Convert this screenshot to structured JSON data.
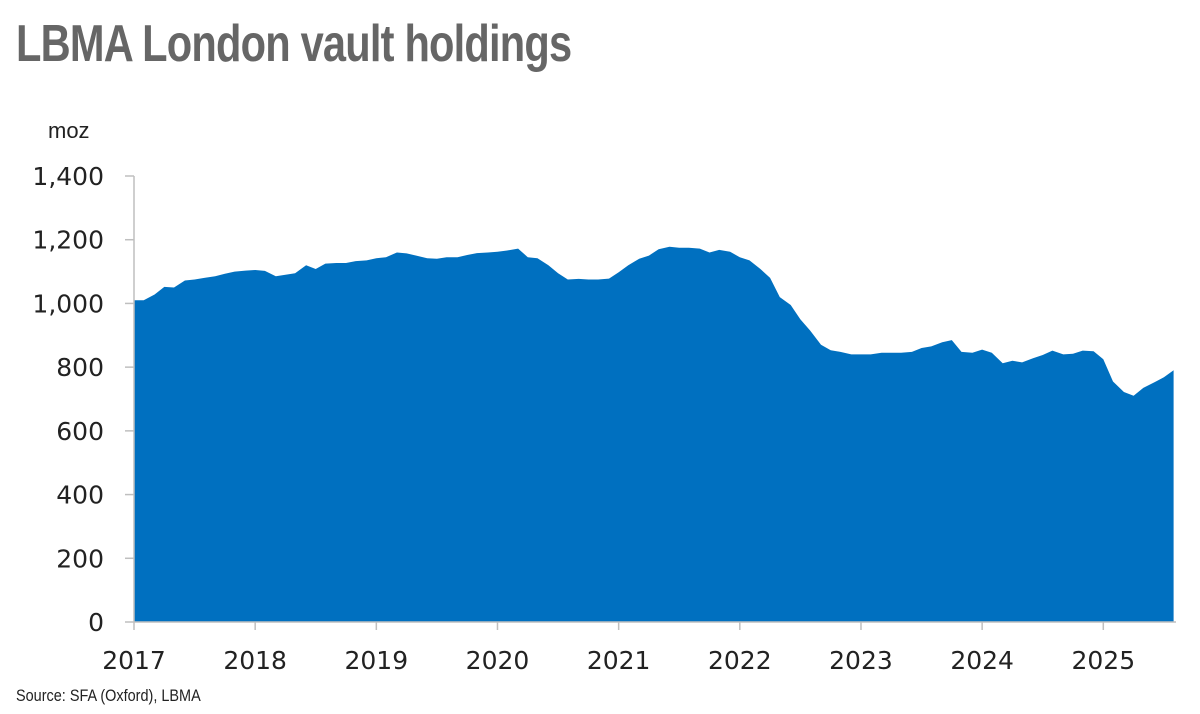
{
  "header": {
    "title": "LBMA London vault holdings"
  },
  "footer": {
    "source": "Source: SFA (Oxford), LBMA"
  },
  "chart_data": {
    "type": "area",
    "title": "LBMA London vault holdings",
    "ylabel": "moz",
    "xlabel": "",
    "ylim": [
      0,
      1400
    ],
    "xlim": [
      2017.0,
      2025.6
    ],
    "yticks": [
      0,
      200,
      400,
      600,
      800,
      1000,
      1200,
      1400
    ],
    "yticklabels": [
      "0",
      "200",
      "400",
      "600",
      "800",
      "1,000",
      "1,200",
      "1,400"
    ],
    "xticks": [
      2017,
      2018,
      2019,
      2020,
      2021,
      2022,
      2023,
      2024,
      2025
    ],
    "xticklabels": [
      "2017",
      "2018",
      "2019",
      "2020",
      "2021",
      "2022",
      "2023",
      "2024",
      "2025"
    ],
    "grid": false,
    "colors": {
      "area": "#0070c0",
      "axis": "#bfbfbf"
    },
    "series": [
      {
        "x": [
          2017.0,
          2017.08,
          2017.17,
          2017.25,
          2017.33,
          2017.42,
          2017.5,
          2017.58,
          2017.67,
          2017.75,
          2017.83,
          2017.92,
          2018.0,
          2018.08,
          2018.17,
          2018.25,
          2018.33,
          2018.42,
          2018.5,
          2018.58,
          2018.67,
          2018.75,
          2018.83,
          2018.92,
          2019.0,
          2019.08,
          2019.17,
          2019.25,
          2019.33,
          2019.42,
          2019.5,
          2019.58,
          2019.67,
          2019.75,
          2019.83,
          2019.92,
          2020.0,
          2020.08,
          2020.17,
          2020.25,
          2020.33,
          2020.42,
          2020.5,
          2020.58,
          2020.67,
          2020.75,
          2020.83,
          2020.92,
          2021.0,
          2021.08,
          2021.17,
          2021.25,
          2021.33,
          2021.42,
          2021.5,
          2021.58,
          2021.67,
          2021.75,
          2021.83,
          2021.92,
          2022.0,
          2022.08,
          2022.17,
          2022.25,
          2022.33,
          2022.42,
          2022.5,
          2022.58,
          2022.67,
          2022.75,
          2022.83,
          2022.92,
          2023.0,
          2023.08,
          2023.17,
          2023.25,
          2023.33,
          2023.42,
          2023.5,
          2023.58,
          2023.67,
          2023.75,
          2023.83,
          2023.92,
          2024.0,
          2024.08,
          2024.17,
          2024.25,
          2024.33,
          2024.42,
          2024.5,
          2024.58,
          2024.67,
          2024.75,
          2024.83,
          2024.92,
          2025.0,
          2025.08,
          2025.17,
          2025.25,
          2025.33,
          2025.42,
          2025.5,
          2025.58
        ],
        "values": [
          1010,
          1010,
          1028,
          1052,
          1050,
          1072,
          1075,
          1080,
          1085,
          1093,
          1100,
          1103,
          1105,
          1102,
          1085,
          1090,
          1095,
          1120,
          1108,
          1125,
          1127,
          1127,
          1133,
          1135,
          1142,
          1145,
          1160,
          1157,
          1150,
          1142,
          1140,
          1145,
          1145,
          1152,
          1158,
          1160,
          1162,
          1166,
          1172,
          1145,
          1142,
          1120,
          1095,
          1075,
          1077,
          1075,
          1075,
          1078,
          1098,
          1120,
          1140,
          1150,
          1170,
          1178,
          1175,
          1175,
          1172,
          1160,
          1168,
          1162,
          1145,
          1135,
          1108,
          1080,
          1020,
          995,
          950,
          915,
          870,
          853,
          848,
          840,
          840,
          840,
          845,
          845,
          845,
          848,
          860,
          865,
          878,
          885,
          848,
          845,
          855,
          845,
          812,
          820,
          815,
          828,
          838,
          852,
          840,
          842,
          852,
          850,
          825,
          755,
          722,
          710,
          735,
          752,
          768,
          790
        ]
      }
    ]
  }
}
